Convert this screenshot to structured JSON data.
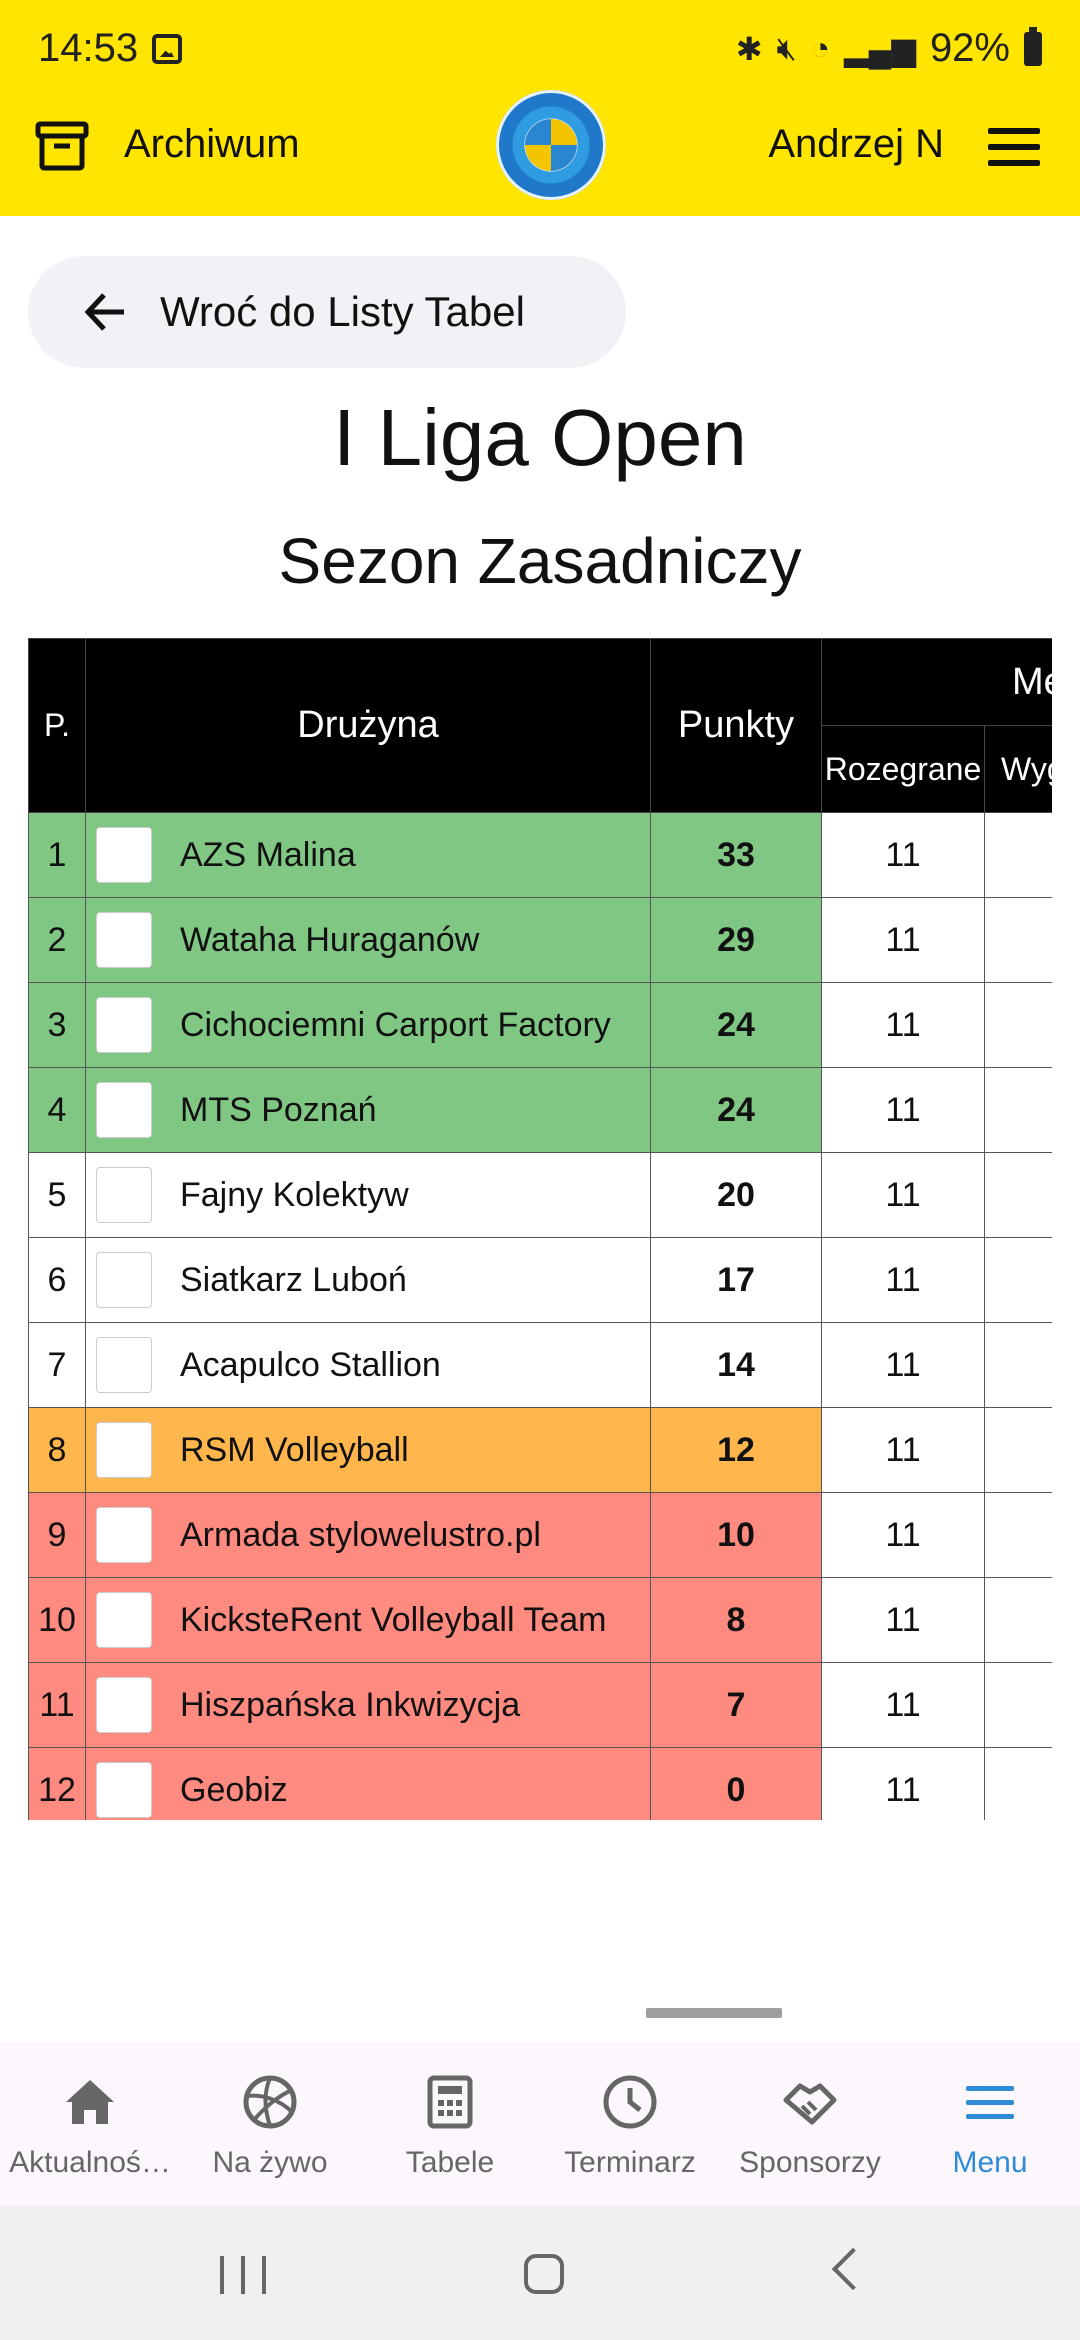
{
  "status_bar": {
    "time": "14:53",
    "battery": "92%"
  },
  "header": {
    "archive_label": "Archiwum",
    "user_name": "Andrzej N"
  },
  "back_button": {
    "label": "Wroć do Listy Tabel"
  },
  "title": "I Liga Open",
  "subtitle": "Sezon Zasadniczy",
  "table": {
    "headers": {
      "pos": "P.",
      "team": "Drużyna",
      "points": "Punkty",
      "matches": "Me",
      "played": "Rozegrane",
      "won": "Wyg"
    },
    "rows": [
      {
        "pos": "1",
        "team": "AZS Malina",
        "points": "33",
        "played": "11"
      },
      {
        "pos": "2",
        "team": "Wataha Huraganów",
        "points": "29",
        "played": "11"
      },
      {
        "pos": "3",
        "team": "Cichociemni Carport Factory",
        "points": "24",
        "played": "11"
      },
      {
        "pos": "4",
        "team": "MTS Poznań",
        "points": "24",
        "played": "11"
      },
      {
        "pos": "5",
        "team": "Fajny Kolektyw",
        "points": "20",
        "played": "11"
      },
      {
        "pos": "6",
        "team": "Siatkarz Luboń",
        "points": "17",
        "played": "11"
      },
      {
        "pos": "7",
        "team": "Acapulco Stallion",
        "points": "14",
        "played": "11"
      },
      {
        "pos": "8",
        "team": "RSM Volleyball",
        "points": "12",
        "played": "11"
      },
      {
        "pos": "9",
        "team": "Armada stylowelustro.pl",
        "points": "10",
        "played": "11"
      },
      {
        "pos": "10",
        "team": "KicksteRent Volleyball Team",
        "points": "8",
        "played": "11"
      },
      {
        "pos": "11",
        "team": "Hiszpańska Inkwizycja",
        "points": "7",
        "played": "11"
      },
      {
        "pos": "12",
        "team": "Geobiz",
        "points": "0",
        "played": "11"
      }
    ],
    "zone_colors": {
      "promotion": "#81C784",
      "safe": "#FFFFFF",
      "playoff": "#FFB74D",
      "relegation": "#FF8A80"
    }
  },
  "bottom_nav": {
    "items": [
      {
        "label": "Aktualnoś…",
        "icon": "home-icon"
      },
      {
        "label": "Na żywo",
        "icon": "volleyball-icon"
      },
      {
        "label": "Tabele",
        "icon": "calculator-icon"
      },
      {
        "label": "Terminarz",
        "icon": "clock-icon"
      },
      {
        "label": "Sponsorzy",
        "icon": "handshake-icon"
      },
      {
        "label": "Menu",
        "icon": "menu-icon"
      }
    ],
    "active_color": "#2E8BD6"
  }
}
